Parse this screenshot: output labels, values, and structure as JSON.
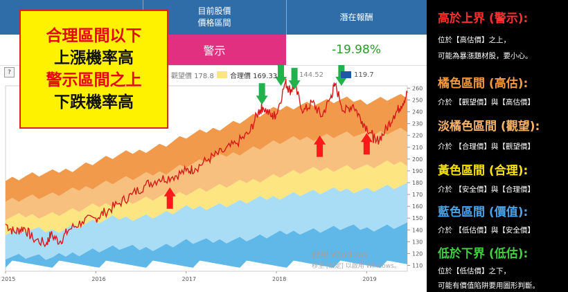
{
  "header": {
    "price_range_label_line1": "目前股價",
    "price_range_label_line2": "價格區間",
    "return_label": "潛在報酬",
    "price_range_value": "警示",
    "return_value": "-19.98%"
  },
  "callout": {
    "line1": "合理區間以下",
    "line2": "上漲機率高",
    "line3": "警示區間之上",
    "line4": "下跌機率高"
  },
  "help_label": "?",
  "legend": [
    {
      "label": "觀望價 178.8",
      "color": "#f2a65a"
    },
    {
      "label": "合理價 169.33",
      "color": "#fde681"
    },
    {
      "label": "144.52",
      "color": "#6cc1ea"
    },
    {
      "label": "119.7",
      "color": "#1d5aa6"
    }
  ],
  "watermark": {
    "line1": "啟用 Windows",
    "line2": "移至 [設定] 以啟用 Windows。"
  },
  "side": {
    "sec1_title": "高於上界 (警示):",
    "sec1_line1": "位於【高估價】之上，",
    "sec1_line2": "可能為暴漲題材股，要小心。",
    "sec2_title": "橘色區間 (高估):",
    "sec2_line1": "介於 【觀望價】與【高估價】",
    "sec3_title": "淡橘色區間 (觀望):",
    "sec3_line1": "介於 【合理價】與【觀望價】",
    "sec4_title": "黃色區間 (合理):",
    "sec4_line1": "介於 【安全價】與【合理價】",
    "sec5_title": "藍色區間 (價值):",
    "sec5_line1": "介於 【低估價】與【安全價】",
    "sec6_title": "低於下界 (低估):",
    "sec6_line1": "位於【低估價】之下，",
    "sec6_line2": "可能有價值陷阱要用圖形判斷。",
    "colors": {
      "red": "#ff3030",
      "orange": "#f59a3c",
      "light_orange": "#f7b26a",
      "yellow": "#ffe200",
      "blue": "#4aa3e8",
      "green": "#3fd13f"
    }
  },
  "chart_data": {
    "type": "area",
    "title": "",
    "x_axis_labels": [
      "2015",
      "2016",
      "2017",
      "2018",
      "2019"
    ],
    "y_ticks": [
      110,
      120,
      130,
      140,
      150,
      160,
      170,
      180,
      190,
      200,
      210,
      220,
      230,
      240,
      250,
      260
    ],
    "ylim": [
      105,
      262
    ],
    "xlim": [
      2015.0,
      2019.45
    ],
    "band_colors": [
      "#5fb8e8",
      "#a9dcf5",
      "#fde681",
      "#f7c07e",
      "#f29a4c"
    ],
    "band_names": [
      "低估價~安全價",
      "安全價~合理價",
      "合理價~觀望價",
      "觀望價~高估價",
      "高估價"
    ],
    "bands": {
      "years": [
        2015.0,
        2015.25,
        2015.5,
        2015.75,
        2016.0,
        2016.25,
        2016.5,
        2016.75,
        2017.0,
        2017.25,
        2017.5,
        2017.75,
        2018.0,
        2018.25,
        2018.5,
        2018.75,
        2019.0,
        2019.25,
        2019.45
      ],
      "b0": [
        118,
        118,
        116,
        120,
        123,
        125,
        124,
        126,
        130,
        130,
        132,
        133,
        136,
        139,
        140,
        142,
        141,
        143,
        144
      ],
      "b1": [
        138,
        140,
        139,
        143,
        147,
        150,
        151,
        153,
        158,
        160,
        162,
        165,
        168,
        171,
        172,
        174,
        174,
        176,
        177
      ],
      "b2": [
        150,
        152,
        153,
        156,
        160,
        163,
        165,
        168,
        172,
        175,
        178,
        182,
        186,
        189,
        191,
        193,
        193,
        196,
        197
      ],
      "b3": [
        165,
        168,
        169,
        173,
        178,
        182,
        185,
        189,
        195,
        199,
        204,
        209,
        214,
        217,
        219,
        221,
        220,
        224,
        225
      ],
      "b4": [
        182,
        186,
        188,
        192,
        198,
        203,
        207,
        212,
        219,
        224,
        230,
        236,
        242,
        246,
        248,
        250,
        249,
        252,
        253
      ]
    },
    "price": {
      "name": "股價",
      "color": "#d61a1a",
      "x": [
        2015.0,
        2015.1,
        2015.2,
        2015.3,
        2015.45,
        2015.5,
        2015.6,
        2015.7,
        2015.85,
        2016.0,
        2016.1,
        2016.25,
        2016.4,
        2016.55,
        2016.7,
        2016.85,
        2017.0,
        2017.1,
        2017.25,
        2017.4,
        2017.55,
        2017.7,
        2017.8,
        2017.85,
        2017.95,
        2018.0,
        2018.1,
        2018.15,
        2018.2,
        2018.3,
        2018.4,
        2018.5,
        2018.6,
        2018.65,
        2018.75,
        2018.85,
        2018.95,
        2019.05,
        2019.1,
        2019.2,
        2019.3,
        2019.38,
        2019.45
      ],
      "y": [
        145,
        138,
        142,
        133,
        128,
        136,
        130,
        140,
        147,
        150,
        155,
        162,
        170,
        178,
        183,
        185,
        190,
        192,
        200,
        206,
        213,
        222,
        240,
        244,
        236,
        238,
        265,
        258,
        262,
        240,
        248,
        236,
        252,
        263,
        240,
        246,
        232,
        222,
        214,
        223,
        237,
        245,
        256
      ]
    },
    "annotations": {
      "up_arrows_x": [
        2016.82,
        2018.48,
        2019.0
      ],
      "down_arrows_x": [
        2017.84,
        2018.05,
        2018.2,
        2018.72
      ]
    }
  }
}
